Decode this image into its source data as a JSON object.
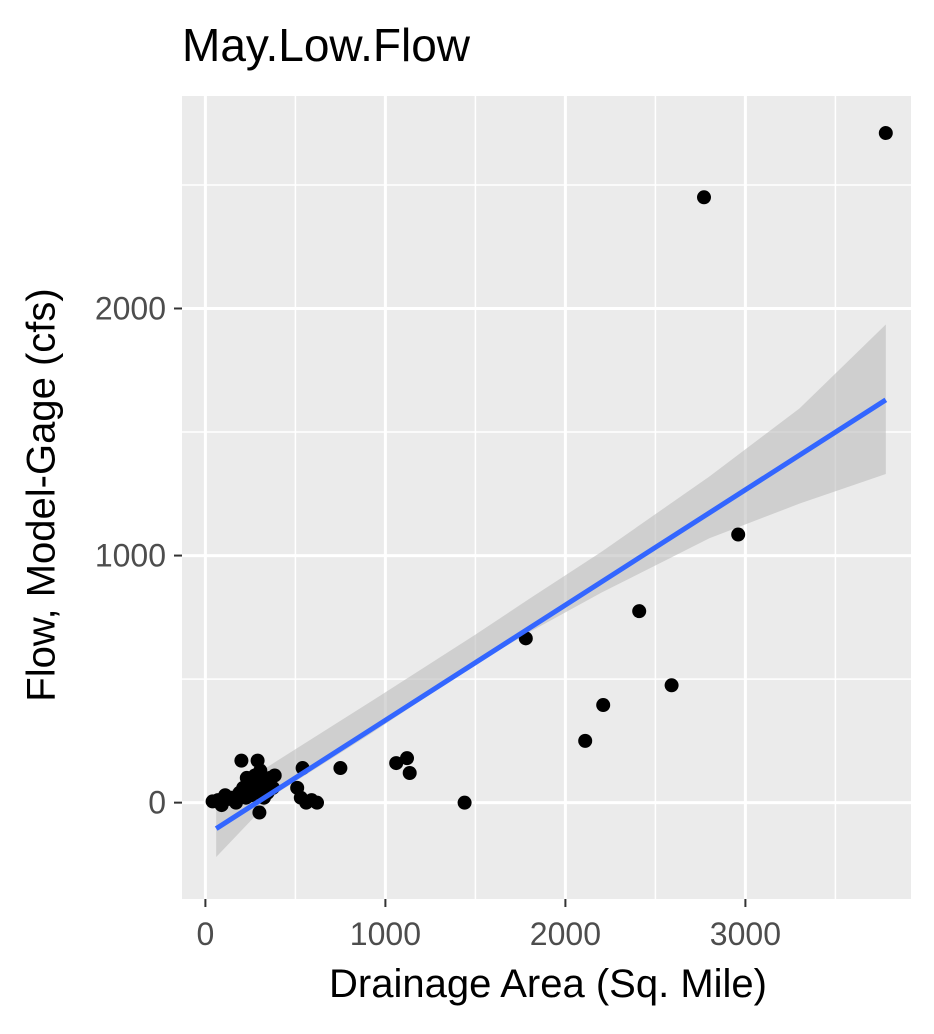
{
  "chart_data": {
    "type": "scatter",
    "title": "May.Low.Flow",
    "xlabel": "Drainage Area (Sq. Mile)",
    "ylabel": "Flow, Model-Gage (cfs)",
    "xlim": [
      -130,
      3920
    ],
    "ylim": [
      -390,
      2860
    ],
    "x_ticks": [
      0,
      1000,
      2000,
      3000
    ],
    "x_tick_labels": [
      "0",
      "1000",
      "2000",
      "3000"
    ],
    "y_ticks": [
      0,
      1000,
      2000
    ],
    "y_tick_labels": [
      "0",
      "1000",
      "2000"
    ],
    "grid": true,
    "background": "#ebebeb",
    "point_color": "#000000",
    "line_color": "#3366ff",
    "ribbon_color": "#bdbdbd",
    "points": [
      {
        "x": 40,
        "y": 5
      },
      {
        "x": 70,
        "y": 10
      },
      {
        "x": 90,
        "y": -10
      },
      {
        "x": 110,
        "y": 30
      },
      {
        "x": 130,
        "y": 15
      },
      {
        "x": 150,
        "y": 20
      },
      {
        "x": 170,
        "y": 0
      },
      {
        "x": 190,
        "y": 40
      },
      {
        "x": 200,
        "y": 170
      },
      {
        "x": 210,
        "y": 60
      },
      {
        "x": 225,
        "y": 20
      },
      {
        "x": 230,
        "y": 100
      },
      {
        "x": 245,
        "y": 80
      },
      {
        "x": 255,
        "y": 30
      },
      {
        "x": 265,
        "y": 50
      },
      {
        "x": 275,
        "y": 110
      },
      {
        "x": 285,
        "y": 90
      },
      {
        "x": 290,
        "y": 170
      },
      {
        "x": 300,
        "y": -40
      },
      {
        "x": 305,
        "y": 130
      },
      {
        "x": 315,
        "y": 60
      },
      {
        "x": 325,
        "y": 20
      },
      {
        "x": 335,
        "y": 80
      },
      {
        "x": 345,
        "y": 40
      },
      {
        "x": 360,
        "y": 100
      },
      {
        "x": 375,
        "y": 60
      },
      {
        "x": 385,
        "y": 110
      },
      {
        "x": 510,
        "y": 60
      },
      {
        "x": 530,
        "y": 20
      },
      {
        "x": 540,
        "y": 140
      },
      {
        "x": 560,
        "y": 0
      },
      {
        "x": 590,
        "y": 10
      },
      {
        "x": 620,
        "y": 0
      },
      {
        "x": 750,
        "y": 140
      },
      {
        "x": 1060,
        "y": 160
      },
      {
        "x": 1120,
        "y": 180
      },
      {
        "x": 1135,
        "y": 120
      },
      {
        "x": 1440,
        "y": 0
      },
      {
        "x": 1780,
        "y": 665
      },
      {
        "x": 2110,
        "y": 250
      },
      {
        "x": 2210,
        "y": 395
      },
      {
        "x": 2410,
        "y": 775
      },
      {
        "x": 2590,
        "y": 475
      },
      {
        "x": 2770,
        "y": 2450
      },
      {
        "x": 2960,
        "y": 1085
      },
      {
        "x": 3780,
        "y": 2710
      }
    ],
    "trend_line": {
      "x": [
        60,
        3780
      ],
      "y": [
        -105,
        1630
      ]
    },
    "confidence_band": {
      "x": [
        60,
        400,
        900,
        1500,
        1800,
        2200,
        2800,
        3300,
        3780
      ],
      "lower": [
        -220,
        40,
        270,
        560,
        690,
        850,
        1070,
        1210,
        1330
      ],
      "upper": [
        10,
        170,
        400,
        680,
        825,
        1015,
        1320,
        1595,
        1935
      ]
    }
  }
}
